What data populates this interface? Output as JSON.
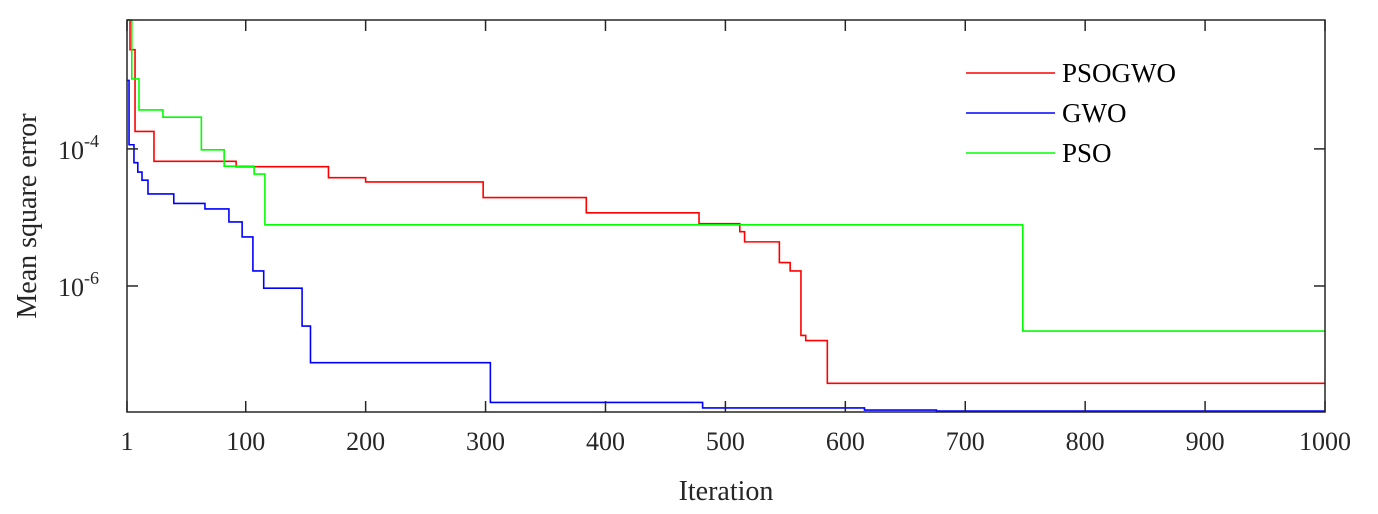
{
  "chart_data": {
    "type": "line",
    "title": "",
    "xlabel": "Iteration",
    "ylabel": "Mean square error",
    "xscale": "linear",
    "yscale": "log",
    "xlim": [
      1,
      1000
    ],
    "ylim": [
      1.45e-08,
      0.0076
    ],
    "xticks": [
      1,
      100,
      200,
      300,
      400,
      500,
      600,
      700,
      800,
      900,
      1000
    ],
    "xtick_labels": [
      "1",
      "100",
      "200",
      "300",
      "400",
      "500",
      "600",
      "700",
      "800",
      "900",
      "1000"
    ],
    "yticks": [
      0.0001,
      1e-06
    ],
    "ytick_labels": [
      {
        "base": "10",
        "exp": "-4"
      },
      {
        "base": "10",
        "exp": "-6"
      }
    ],
    "grid": false,
    "legend_position": "top-right",
    "step": true,
    "series": [
      {
        "name": "PSOGWO",
        "color": "#ff0000",
        "points": [
          [
            1,
            0.0076
          ],
          [
            3.5,
            0.0028
          ],
          [
            7.7,
            0.00018
          ],
          [
            23.5,
            6.6e-05
          ],
          [
            92,
            5.5e-05
          ],
          [
            169,
            3.8e-05
          ],
          [
            200,
            3.3e-05
          ],
          [
            298,
            1.95e-05
          ],
          [
            384,
            1.17e-05
          ],
          [
            478,
            8.1e-06
          ],
          [
            512,
            6.2e-06
          ],
          [
            516,
            4.4e-06
          ],
          [
            545,
            2.2e-06
          ],
          [
            554,
            1.66e-06
          ],
          [
            563,
            1.9e-07
          ],
          [
            567,
            1.6e-07
          ],
          [
            585,
            3.8e-08
          ],
          [
            1000,
            3.8e-08
          ]
        ]
      },
      {
        "name": "GWO",
        "color": "#0000ff",
        "points": [
          [
            1,
            0.001
          ],
          [
            2.7,
            0.000115
          ],
          [
            6.8,
            6.3e-05
          ],
          [
            10,
            4.6e-05
          ],
          [
            13.5,
            3.5e-05
          ],
          [
            18.5,
            2.2e-05
          ],
          [
            40,
            1.6e-05
          ],
          [
            66,
            1.33e-05
          ],
          [
            86,
            8.6e-06
          ],
          [
            97,
            5.2e-06
          ],
          [
            106,
            1.66e-06
          ],
          [
            115,
            9.3e-07
          ],
          [
            147,
            2.6e-07
          ],
          [
            154,
            7.6e-08
          ],
          [
            304,
            2e-08
          ],
          [
            481,
            1.66e-08
          ],
          [
            616,
            1.55e-08
          ],
          [
            676,
            1.5e-08
          ],
          [
            1000,
            1.5e-08
          ]
        ]
      },
      {
        "name": "PSO",
        "color": "#00ff00",
        "points": [
          [
            1,
            0.0076
          ],
          [
            5,
            0.00105
          ],
          [
            11,
            0.00037
          ],
          [
            31,
            0.00029
          ],
          [
            63,
            9.7e-05
          ],
          [
            82,
            5.6e-05
          ],
          [
            107,
            4.3e-05
          ],
          [
            116,
            7.8e-06
          ],
          [
            748,
            2.2e-07
          ],
          [
            1000,
            2.2e-07
          ]
        ]
      }
    ]
  }
}
